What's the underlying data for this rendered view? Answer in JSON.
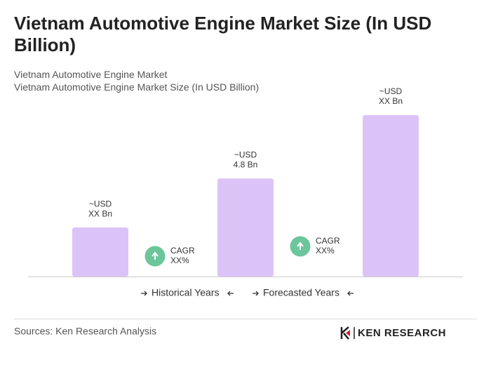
{
  "chart_data": {
    "type": "bar",
    "title": "Vietnam Automotive Engine Market Size (In USD Billion)",
    "subtitle": [
      "Vietnam Automotive Engine Market",
      "Vietnam Automotive Engine Market Size (In USD Billion)"
    ],
    "categories": [
      null,
      null,
      null
    ],
    "values": [
      2.4,
      4.8,
      7.9
    ],
    "value_labels": [
      [
        "~USD",
        "XX Bn"
      ],
      [
        "~USD",
        "4.8 Bn"
      ],
      [
        "~USD",
        "XX Bn"
      ]
    ],
    "color": "#dcc3f7",
    "annotations": [
      [
        "CAGR",
        "XX%"
      ],
      [
        "CAGR",
        "XX%"
      ]
    ],
    "annotation_color": "#6cc59b",
    "legend": [
      "Historical Years",
      "Forecasted Years"
    ],
    "source": "Sources: Ken Research Analysis",
    "logo": "KEN RESEARCH"
  }
}
